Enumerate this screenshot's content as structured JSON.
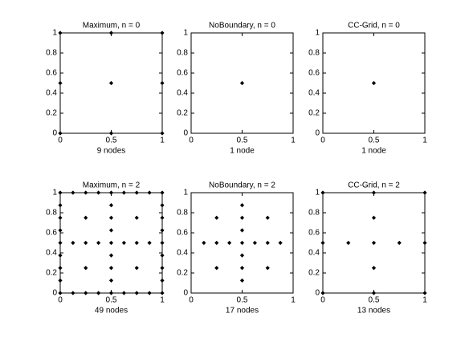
{
  "chart_data": [
    {
      "type": "scatter",
      "title": "Maximum, n = 0",
      "xlabel": "9 nodes",
      "color": "#000000",
      "x": [
        0,
        0.5,
        1,
        0,
        0.5,
        1,
        0,
        0.5,
        1
      ],
      "y": [
        0,
        0,
        0,
        0.5,
        0.5,
        0.5,
        1,
        1,
        1
      ],
      "xlim": [
        0,
        1
      ],
      "ylim": [
        0,
        1
      ],
      "xticks": [
        0,
        0.5,
        1
      ],
      "yticks": [
        0,
        0.2,
        0.4,
        0.6,
        0.8,
        1
      ]
    },
    {
      "type": "scatter",
      "title": "NoBoundary, n = 0",
      "xlabel": "1 node",
      "color": "#000000",
      "x": [
        0.5
      ],
      "y": [
        0.5
      ],
      "xlim": [
        0,
        1
      ],
      "ylim": [
        0,
        1
      ],
      "xticks": [
        0,
        0.5,
        1
      ],
      "yticks": [
        0,
        0.2,
        0.4,
        0.6,
        0.8,
        1
      ]
    },
    {
      "type": "scatter",
      "title": "CC-Grid, n = 0",
      "xlabel": "1 node",
      "color": "#000000",
      "x": [
        0.5
      ],
      "y": [
        0.5
      ],
      "xlim": [
        0,
        1
      ],
      "ylim": [
        0,
        1
      ],
      "xticks": [
        0,
        0.5,
        1
      ],
      "yticks": [
        0,
        0.2,
        0.4,
        0.6,
        0.8,
        1
      ]
    },
    {
      "type": "scatter",
      "title": "Maximum, n = 2",
      "xlabel": "49 nodes",
      "color": "#000000",
      "x": [
        0,
        0.125,
        0.25,
        0.375,
        0.5,
        0.625,
        0.75,
        0.875,
        1,
        0,
        0.125,
        0.25,
        0.375,
        0.5,
        0.625,
        0.75,
        0.875,
        1,
        0,
        0,
        0,
        0,
        0,
        0,
        0,
        1,
        1,
        1,
        1,
        1,
        1,
        1,
        0.5,
        0.5,
        0.5,
        0.5,
        0.5,
        0.5,
        0.5,
        0.125,
        0.25,
        0.375,
        0.625,
        0.75,
        0.875,
        0.25,
        0.75,
        0.25,
        0.75
      ],
      "y": [
        0,
        0,
        0,
        0,
        0,
        0,
        0,
        0,
        0,
        1,
        1,
        1,
        1,
        1,
        1,
        1,
        1,
        1,
        0.125,
        0.25,
        0.375,
        0.5,
        0.625,
        0.75,
        0.875,
        0.125,
        0.25,
        0.375,
        0.5,
        0.625,
        0.75,
        0.875,
        0.125,
        0.25,
        0.375,
        0.5,
        0.625,
        0.75,
        0.875,
        0.5,
        0.5,
        0.5,
        0.5,
        0.5,
        0.5,
        0.25,
        0.25,
        0.75,
        0.75
      ],
      "xlim": [
        0,
        1
      ],
      "ylim": [
        0,
        1
      ],
      "xticks": [
        0,
        0.5,
        1
      ],
      "yticks": [
        0,
        0.2,
        0.4,
        0.6,
        0.8,
        1
      ]
    },
    {
      "type": "scatter",
      "title": "NoBoundary, n = 2",
      "xlabel": "17 nodes",
      "color": "#000000",
      "x": [
        0.5,
        0.5,
        0.5,
        0.5,
        0.5,
        0.5,
        0.5,
        0.125,
        0.25,
        0.375,
        0.625,
        0.75,
        0.875,
        0.25,
        0.75,
        0.25,
        0.75
      ],
      "y": [
        0.125,
        0.25,
        0.375,
        0.5,
        0.625,
        0.75,
        0.875,
        0.5,
        0.5,
        0.5,
        0.5,
        0.5,
        0.5,
        0.25,
        0.25,
        0.75,
        0.75
      ],
      "xlim": [
        0,
        1
      ],
      "ylim": [
        0,
        1
      ],
      "xticks": [
        0,
        0.5,
        1
      ],
      "yticks": [
        0,
        0.2,
        0.4,
        0.6,
        0.8,
        1
      ]
    },
    {
      "type": "scatter",
      "title": "CC-Grid, n = 2",
      "xlabel": "13 nodes",
      "color": "#000000",
      "x": [
        0.5,
        0.5,
        0.5,
        0.5,
        0.5,
        0,
        0.25,
        0.75,
        1,
        0,
        1,
        0,
        1
      ],
      "y": [
        0,
        0.25,
        0.5,
        0.75,
        1,
        0.5,
        0.5,
        0.5,
        0.5,
        0,
        0,
        1,
        1
      ],
      "xlim": [
        0,
        1
      ],
      "ylim": [
        0,
        1
      ],
      "xticks": [
        0,
        0.5,
        1
      ],
      "yticks": [
        0,
        0.2,
        0.4,
        0.6,
        0.8,
        1
      ]
    }
  ]
}
